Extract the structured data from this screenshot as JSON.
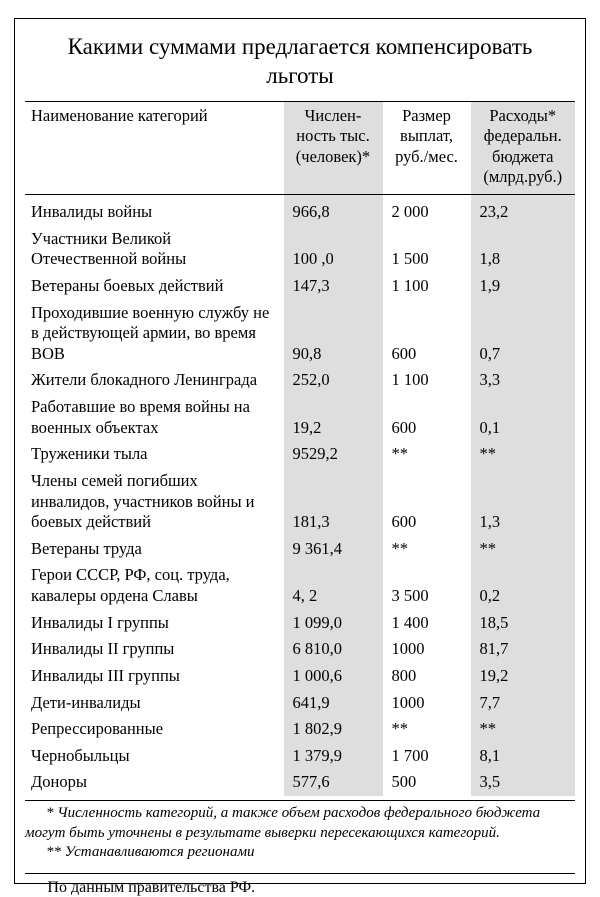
{
  "title": "Какими суммами предлагается компенсировать льготы",
  "columns": {
    "category": "Наименование категорий",
    "count": "Числен­ность тыс. (человек)*",
    "payment": "Размер выплат, руб./мес.",
    "cost": "Расходы* федеральн. бюджета (млрд.руб.)"
  },
  "rows": [
    {
      "category": "Инвалиды войны",
      "count": "966,8",
      "payment": "2 000",
      "cost": "23,2"
    },
    {
      "category": "Участники Великой Отечественной войны",
      "count": "100 ,0",
      "payment": "1 500",
      "cost": "1,8"
    },
    {
      "category": "Ветераны боевых действий",
      "count": "147,3",
      "payment": "1 100",
      "cost": "1,9"
    },
    {
      "category": "Проходившие военную службу не в действующей армии, во время ВОВ",
      "count": "90,8",
      "payment": "600",
      "cost": "0,7"
    },
    {
      "category": "Жители блокадного Ленинграда",
      "count": "252,0",
      "payment": "1 100",
      "cost": "3,3"
    },
    {
      "category": "Работавшие во время войны на военных объектах",
      "count": "19,2",
      "payment": "600",
      "cost": "0,1"
    },
    {
      "category": "Труженики тыла",
      "count": "9529,2",
      "payment": "**",
      "cost": "**"
    },
    {
      "category": "Члены семей погибших инвалидов, участников войны и боевых действий",
      "count": "181,3",
      "payment": "600",
      "cost": "1,3"
    },
    {
      "category": "Ветераны труда",
      "count": "9 361,4",
      "payment": "**",
      "cost": "**"
    },
    {
      "category": "Герои СССР, РФ, соц. труда, кавалеры ордена Славы",
      "count": "4, 2",
      "payment": "3 500",
      "cost": "0,2"
    },
    {
      "category": "Инвалиды I группы",
      "count": "1 099,0",
      "payment": "1 400",
      "cost": "18,5"
    },
    {
      "category": "Инвалиды II группы",
      "count": "6 810,0",
      "payment": "1000",
      "cost": "81,7"
    },
    {
      "category": "Инвалиды III группы",
      "count": "1 000,6",
      "payment": "800",
      "cost": "19,2"
    },
    {
      "category": "Дети-инвалиды",
      "count": "641,9",
      "payment": "1000",
      "cost": "7,7"
    },
    {
      "category": "Репрессированные",
      "count": "1 802,9",
      "payment": "**",
      "cost": "**"
    },
    {
      "category": "Чернобыльцы",
      "count": "1 379,9",
      "payment": "1 700",
      "cost": "8,1"
    },
    {
      "category": "Доноры",
      "count": "577,6",
      "payment": "500",
      "cost": "3,5"
    }
  ],
  "footnote1": "* Численность категорий, а также объем расходов федерального бюджета могут быть уточнены в результате выверки пересекающихся категорий.",
  "footnote2": "** Устанавливаются регионами",
  "source": "По данным правительства РФ.",
  "style": {
    "shade_color": "#dedede",
    "border_color": "#000000",
    "text_color": "#000000",
    "background": "#ffffff",
    "title_fontsize": 23,
    "body_fontsize": 16.5,
    "footnote_fontsize": 15
  }
}
